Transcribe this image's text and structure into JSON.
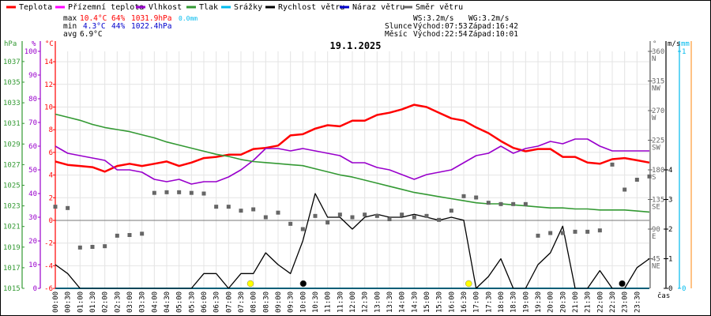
{
  "legend": [
    {
      "label": "Teplota",
      "color": "#ff0000"
    },
    {
      "label": "Přízemní teplota",
      "color": "#ff00ff"
    },
    {
      "label": "Vlhkost",
      "color": "#9900cc"
    },
    {
      "label": "Tlak",
      "color": "#339933"
    },
    {
      "label": "Srážky",
      "color": "#00bbee"
    },
    {
      "label": "Rychlost větru",
      "color": "#000000"
    },
    {
      "label": "Náraz větru",
      "color": "#0000cc"
    },
    {
      "label": "Směr větru",
      "color": "#666666"
    }
  ],
  "stats": {
    "max_label": "max",
    "max_temp": "10.4°C",
    "max_hum": "64%",
    "max_press": "1031.9hPa",
    "max_rain": "0.0mm",
    "min_label": "min",
    "min_temp": "4.3°C",
    "min_hum": "44%",
    "min_press": "1022.4hPa",
    "avg_label": "avg",
    "avg_temp": "6.9°C",
    "ws": "WS:3.2m/s",
    "wg": "WG:3.2m/s",
    "sun_label": "Slunce",
    "sun_rise": "Východ:07:53",
    "sun_set": "Západ:16:42",
    "moon_label": "Měsíc",
    "moon_rise": "Východ:22:54",
    "moon_set": "Západ:10:01"
  },
  "chart_data": {
    "type": "line",
    "title": "19.1.2025",
    "xlabel": "čas",
    "x_ticks": [
      "00:00",
      "00:30",
      "01:00",
      "01:30",
      "02:00",
      "02:30",
      "03:00",
      "03:30",
      "04:00",
      "04:30",
      "05:00",
      "05:30",
      "06:00",
      "06:30",
      "07:00",
      "07:30",
      "08:00",
      "08:30",
      "09:00",
      "09:30",
      "10:00",
      "10:30",
      "11:00",
      "11:30",
      "12:00",
      "12:30",
      "13:00",
      "13:30",
      "14:00",
      "14:30",
      "15:00",
      "15:30",
      "16:00",
      "16:30",
      "17:00",
      "17:30",
      "18:00",
      "18:30",
      "19:00",
      "19:30",
      "20:00",
      "20:30",
      "21:00",
      "21:30",
      "22:00",
      "22:30",
      "23:00",
      "23:30"
    ],
    "axes": {
      "pressure": {
        "unit": "hPa",
        "range": [
          1015,
          1037
        ],
        "ticks": [
          1015,
          1017,
          1019,
          1021,
          1023,
          1025,
          1027,
          1029,
          1031,
          1033,
          1035,
          1037
        ],
        "color": "#339933"
      },
      "humidity": {
        "unit": "%",
        "range": [
          0,
          100
        ],
        "ticks": [
          0,
          10,
          20,
          30,
          40,
          50,
          60,
          70,
          80,
          90,
          100
        ],
        "color": "#9900cc"
      },
      "temperature": {
        "unit": "°C",
        "range": [
          -6,
          14
        ],
        "ticks": [
          -6,
          -4,
          -2,
          0,
          2,
          4,
          6,
          8,
          10,
          12,
          14
        ],
        "color": "#ff0000"
      },
      "direction": {
        "unit": "°",
        "range": [
          0,
          360
        ],
        "ticks": [
          45,
          90,
          135,
          180,
          225,
          270,
          315,
          360
        ],
        "compass": [
          "NE",
          "E",
          "SE",
          "S",
          "SW",
          "W",
          "NW",
          "N"
        ],
        "color": "#666666"
      },
      "wind": {
        "unit": "m/s",
        "range": [
          0,
          4
        ],
        "ticks": [
          0,
          1,
          2,
          3,
          4
        ],
        "color": "#000000"
      },
      "rain": {
        "unit": "mm",
        "range": [
          0,
          1
        ],
        "ticks": [
          0,
          1
        ],
        "color": "#00bbee"
      }
    },
    "grid": true,
    "times_half_hourly": "00:00-24:00",
    "series": [
      {
        "name": "Teplota",
        "axis": "temperature",
        "color": "#ff0000",
        "values": [
          5.2,
          4.9,
          4.8,
          4.7,
          4.3,
          4.8,
          5.0,
          4.8,
          5.0,
          5.2,
          4.8,
          5.1,
          5.5,
          5.6,
          5.8,
          5.8,
          6.3,
          6.4,
          6.6,
          7.5,
          7.6,
          8.1,
          8.4,
          8.3,
          8.8,
          8.8,
          9.3,
          9.5,
          9.8,
          10.2,
          10.0,
          9.5,
          9.0,
          8.8,
          8.2,
          7.7,
          7.0,
          6.4,
          6.1,
          6.3,
          6.3,
          5.6,
          5.6,
          5.1,
          5.0,
          5.4,
          5.5,
          5.3,
          5.1
        ]
      },
      {
        "name": "Vlhkost",
        "axis": "humidity",
        "color": "#9900cc",
        "values": [
          60,
          57,
          56,
          55,
          54,
          50,
          50,
          49,
          46,
          45,
          46,
          44,
          45,
          45,
          47,
          50,
          54,
          59,
          59,
          58,
          59,
          58,
          57,
          56,
          53,
          53,
          51,
          50,
          48,
          46,
          48,
          49,
          50,
          53,
          56,
          57,
          60,
          57,
          59,
          60,
          62,
          61,
          63,
          63,
          60,
          58,
          58,
          58,
          58
        ]
      },
      {
        "name": "Tlak",
        "axis": "pressure",
        "color": "#339933",
        "values": [
          1031.9,
          1031.6,
          1031.3,
          1030.9,
          1030.6,
          1030.4,
          1030.2,
          1029.9,
          1029.6,
          1029.2,
          1028.9,
          1028.6,
          1028.3,
          1028.0,
          1027.8,
          1027.5,
          1027.3,
          1027.2,
          1027.1,
          1027.0,
          1026.9,
          1026.6,
          1026.3,
          1026.0,
          1025.8,
          1025.5,
          1025.2,
          1024.9,
          1024.6,
          1024.3,
          1024.1,
          1023.9,
          1023.7,
          1023.5,
          1023.3,
          1023.2,
          1023.2,
          1023.1,
          1023.0,
          1022.9,
          1022.8,
          1022.8,
          1022.7,
          1022.7,
          1022.6,
          1022.6,
          1022.6,
          1022.5,
          1022.4
        ]
      },
      {
        "name": "Srážky",
        "axis": "rain",
        "color": "#00bbee",
        "values": [
          0,
          0,
          0,
          0,
          0,
          0,
          0,
          0,
          0,
          0,
          0,
          0,
          0,
          0,
          0,
          0,
          0,
          0,
          0,
          0,
          0,
          0,
          0,
          0,
          0,
          0,
          0,
          0,
          0,
          0,
          0,
          0,
          0,
          0,
          0,
          0,
          0,
          0,
          0,
          0,
          0,
          0,
          0,
          0,
          0,
          0,
          0,
          0,
          0
        ]
      },
      {
        "name": "Rychlost větru",
        "axis": "wind",
        "color": "#000000",
        "values": [
          0.8,
          0.5,
          0,
          0,
          0,
          0,
          0,
          0,
          0,
          0,
          0,
          0,
          0.5,
          0.5,
          0,
          0.5,
          0.5,
          1.2,
          0.8,
          0.5,
          1.6,
          3.2,
          2.4,
          2.4,
          2.0,
          2.4,
          2.5,
          2.4,
          2.4,
          2.5,
          2.4,
          2.3,
          2.4,
          2.3,
          0,
          0.4,
          1.0,
          0,
          0,
          0.8,
          1.2,
          2.1,
          0,
          0,
          0.6,
          0,
          0,
          0.7,
          1.0
        ]
      },
      {
        "name": "Směr větru",
        "axis": "direction",
        "color": "#666666",
        "values": [
          124,
          122,
          62,
          63,
          64,
          80,
          81,
          83,
          145,
          146,
          146,
          145,
          144,
          124,
          124,
          118,
          120,
          108,
          115,
          98,
          90,
          110,
          100,
          112,
          108,
          112,
          110,
          105,
          112,
          108,
          110,
          104,
          118,
          140,
          138,
          130,
          128,
          128,
          128,
          80,
          84,
          84,
          86,
          86,
          88,
          188,
          150,
          165,
          170
        ]
      }
    ],
    "markers": [
      {
        "type": "sunrise",
        "time": "07:53",
        "color": "#ffff00"
      },
      {
        "type": "moonset",
        "time": "10:01",
        "color": "#000000"
      },
      {
        "type": "sunset",
        "time": "16:42",
        "color": "#ffff00"
      },
      {
        "type": "moonrise",
        "time": "22:54",
        "color": "#000000"
      }
    ]
  }
}
